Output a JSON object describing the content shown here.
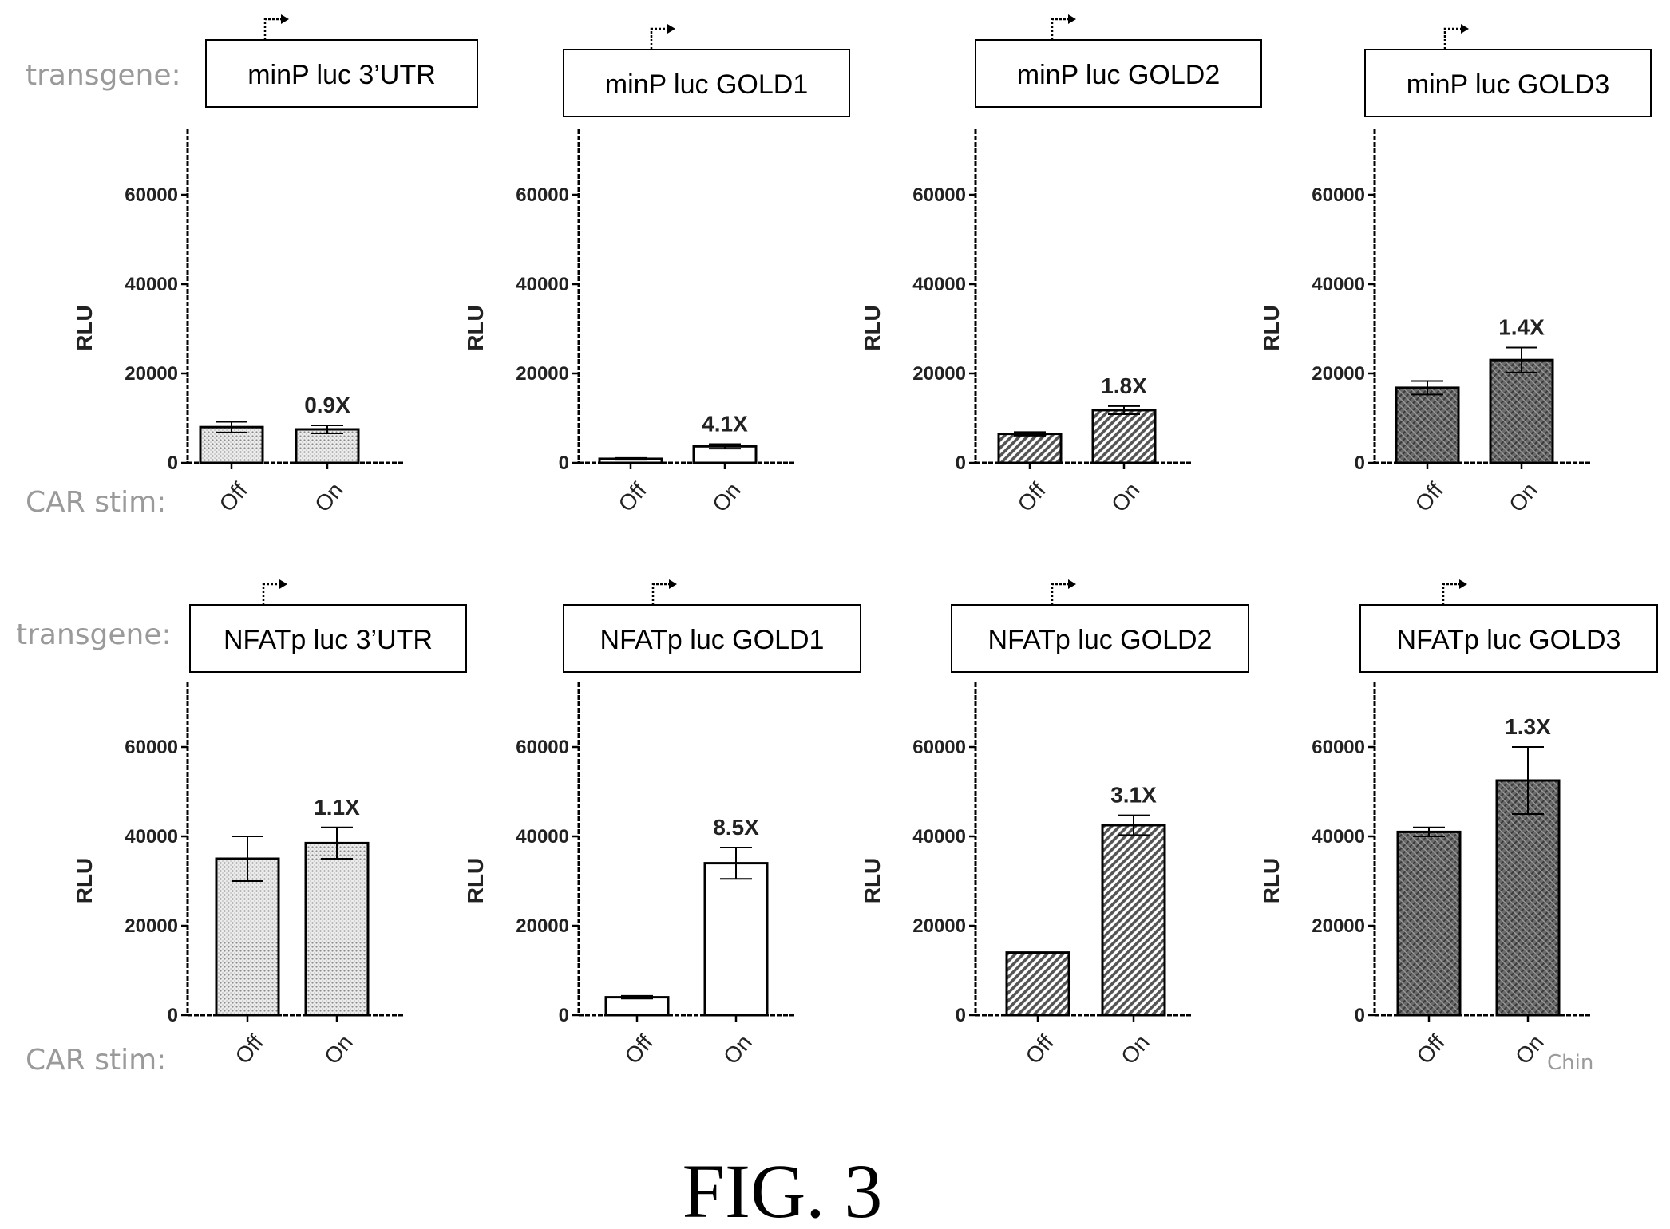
{
  "figure": {
    "caption": "FIG. 3",
    "row_label_transgene": "transgene:",
    "row_label_car_stim": "CAR stim:",
    "stray_text": "Chin"
  },
  "chart_data": [
    {
      "type": "bar",
      "title": "minP  luc  3’UTR",
      "ylabel": "RLU",
      "categories": [
        "Off",
        "On"
      ],
      "values": [
        8000,
        7500
      ],
      "errors": [
        1200,
        900
      ],
      "annotation": "0.9X",
      "ylim": [
        0,
        72000
      ],
      "yticks": [
        "0",
        "20000",
        "40000",
        "60000"
      ],
      "fill": "dots"
    },
    {
      "type": "bar",
      "title": "minP  luc  GOLD1",
      "ylabel": "RLU",
      "categories": [
        "Off",
        "On"
      ],
      "values": [
        900,
        3700
      ],
      "errors": [
        200,
        500
      ],
      "annotation": "4.1X",
      "ylim": [
        0,
        72000
      ],
      "yticks": [
        "0",
        "20000",
        "40000",
        "60000"
      ],
      "fill": "white"
    },
    {
      "type": "bar",
      "title": "minP  luc  GOLD2",
      "ylabel": "RLU",
      "categories": [
        "Off",
        "On"
      ],
      "values": [
        6500,
        11800
      ],
      "errors": [
        400,
        900
      ],
      "annotation": "1.8X",
      "ylim": [
        0,
        72000
      ],
      "yticks": [
        "0",
        "20000",
        "40000",
        "60000"
      ],
      "fill": "hatch"
    },
    {
      "type": "bar",
      "title": "minP  luc  GOLD3",
      "ylabel": "RLU",
      "categories": [
        "Off",
        "On"
      ],
      "values": [
        16800,
        23000
      ],
      "errors": [
        1500,
        2800
      ],
      "annotation": "1.4X",
      "ylim": [
        0,
        72000
      ],
      "yticks": [
        "0",
        "20000",
        "40000",
        "60000"
      ],
      "fill": "crosshatch"
    },
    {
      "type": "bar",
      "title": "NFATp luc 3’UTR",
      "ylabel": "RLU",
      "categories": [
        "Off",
        "On"
      ],
      "values": [
        35000,
        38500
      ],
      "errors": [
        5000,
        3500
      ],
      "annotation": "1.1X",
      "ylim": [
        0,
        72000
      ],
      "yticks": [
        "0",
        "20000",
        "40000",
        "60000"
      ],
      "fill": "dots"
    },
    {
      "type": "bar",
      "title": "NFATp luc GOLD1",
      "ylabel": "RLU",
      "categories": [
        "Off",
        "On"
      ],
      "values": [
        4000,
        34000
      ],
      "errors": [
        300,
        3500
      ],
      "annotation": "8.5X",
      "ylim": [
        0,
        72000
      ],
      "yticks": [
        "0",
        "20000",
        "40000",
        "60000"
      ],
      "fill": "white"
    },
    {
      "type": "bar",
      "title": "NFATp luc GOLD2",
      "ylabel": "RLU",
      "categories": [
        "Off",
        "On"
      ],
      "values": [
        14000,
        42500
      ],
      "errors": [
        0,
        2200
      ],
      "annotation": "3.1X",
      "ylim": [
        0,
        72000
      ],
      "yticks": [
        "0",
        "20000",
        "40000",
        "60000"
      ],
      "fill": "hatch"
    },
    {
      "type": "bar",
      "title": "NFATp luc GOLD3",
      "ylabel": "RLU",
      "categories": [
        "Off",
        "On"
      ],
      "values": [
        41000,
        52500
      ],
      "errors": [
        1000,
        7500
      ],
      "annotation": "1.3X",
      "ylim": [
        0,
        72000
      ],
      "yticks": [
        "0",
        "20000",
        "40000",
        "60000"
      ],
      "fill": "crosshatch"
    }
  ]
}
